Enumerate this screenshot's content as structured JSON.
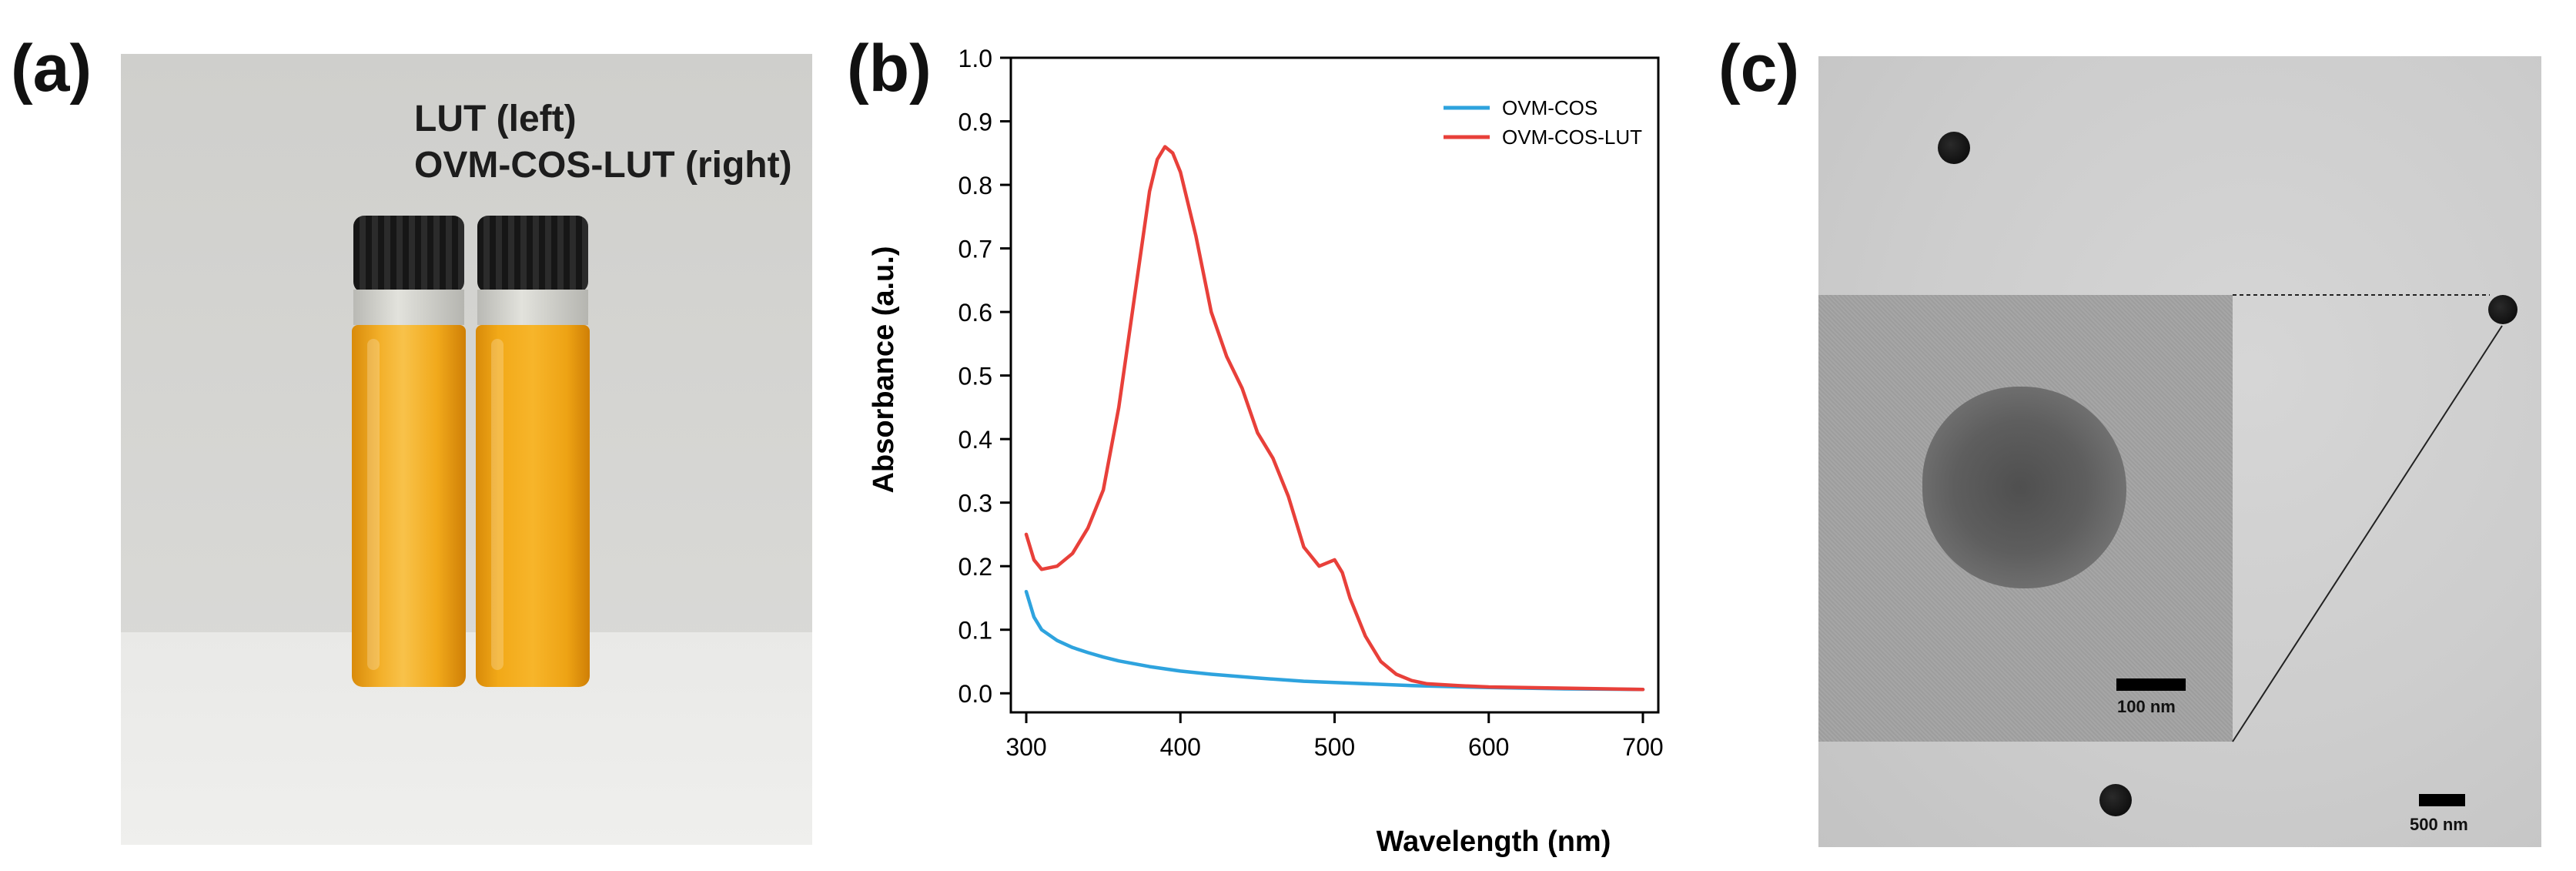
{
  "panels": {
    "a": {
      "label": "(a)",
      "caption_line1": "LUT (left)",
      "caption_line2": "OVM-COS-LUT (right)"
    },
    "b": {
      "label": "(b)"
    },
    "c": {
      "label": "(c)",
      "inset_scale": "100 nm",
      "main_scale": "500 nm"
    }
  },
  "colors": {
    "ovm_cos": "#2ea3de",
    "ovm_cos_lut": "#e8403a"
  },
  "chart_data": {
    "type": "line",
    "title": "",
    "xlabel": "Wavelength (nm)",
    "ylabel": "Absorbance (a.u.)",
    "xlim": [
      290,
      710
    ],
    "ylim": [
      -0.03,
      1.0
    ],
    "xticks": [
      300,
      400,
      500,
      600,
      700
    ],
    "yticks": [
      0.0,
      0.1,
      0.2,
      0.3,
      0.4,
      0.5,
      0.6,
      0.7,
      0.8,
      0.9,
      1.0
    ],
    "legend_position": "top-right",
    "series": [
      {
        "name": "OVM-COS",
        "color_key": "ovm_cos",
        "x": [
          300,
          305,
          310,
          320,
          330,
          340,
          350,
          360,
          380,
          400,
          420,
          450,
          480,
          500,
          550,
          600,
          650,
          700
        ],
        "y": [
          0.16,
          0.12,
          0.1,
          0.083,
          0.072,
          0.064,
          0.057,
          0.051,
          0.042,
          0.035,
          0.03,
          0.024,
          0.019,
          0.017,
          0.012,
          0.009,
          0.007,
          0.006
        ]
      },
      {
        "name": "OVM-COS-LUT",
        "color_key": "ovm_cos_lut",
        "x": [
          300,
          305,
          310,
          320,
          330,
          340,
          350,
          360,
          370,
          380,
          385,
          390,
          395,
          400,
          410,
          420,
          430,
          440,
          450,
          460,
          470,
          480,
          490,
          500,
          505,
          510,
          520,
          530,
          540,
          550,
          560,
          580,
          600,
          650,
          700
        ],
        "y": [
          0.25,
          0.21,
          0.195,
          0.2,
          0.22,
          0.26,
          0.32,
          0.45,
          0.62,
          0.79,
          0.84,
          0.86,
          0.85,
          0.82,
          0.72,
          0.6,
          0.53,
          0.48,
          0.41,
          0.37,
          0.31,
          0.23,
          0.2,
          0.21,
          0.19,
          0.15,
          0.09,
          0.05,
          0.03,
          0.02,
          0.015,
          0.012,
          0.01,
          0.008,
          0.006
        ]
      }
    ]
  }
}
